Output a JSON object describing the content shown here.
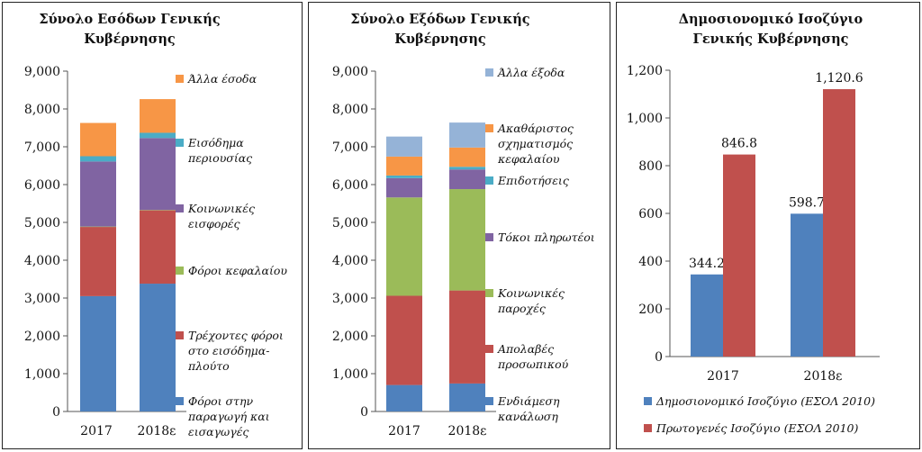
{
  "charts": [
    {
      "title": [
        "Σύνολο Εσόδων Γενικής",
        "Κυβέρνησης"
      ],
      "ytick_labels": [
        "0",
        "1,000",
        "2,000",
        "3,000",
        "4,000",
        "5,000",
        "6,000",
        "7,000",
        "8,000",
        "9,000"
      ],
      "legend_lines": [
        [
          "Άλλα έσοδα"
        ],
        [
          "Εισόδημα",
          "περιουσίας"
        ],
        [
          "Κοινωνικές",
          "εισφορές"
        ],
        [
          "Φόροι κεφαλαίου"
        ],
        [
          "Τρέχοντες φόροι",
          "στο εισόδημα-",
          "πλούτο"
        ],
        [
          "Φόροι στην",
          "παραγωγή και",
          "εισαγωγές"
        ]
      ]
    },
    {
      "title": [
        "Σύνολο Εξόδων Γενικής",
        "Κυβέρνησης"
      ],
      "ytick_labels": [
        "0",
        "1,000",
        "2,000",
        "3,000",
        "4,000",
        "5,000",
        "6,000",
        "7,000",
        "8,000",
        "9,000"
      ],
      "legend_lines": [
        [
          "Άλλα έξοδα"
        ],
        [
          "Ακαθάριστος",
          "σχηματισμός",
          "κεφαλαίου"
        ],
        [
          "Επιδοτήσεις"
        ],
        [
          "Τόκοι πληρωτέοι"
        ],
        [
          "Κοινωνικές",
          "παροχές"
        ],
        [
          "Απολαβές",
          "προσωπικού"
        ],
        [
          "Ενδιάμεση",
          "κανάλωση"
        ]
      ]
    },
    {
      "title": [
        "Δημοσιονομικό Ισοζύγιο",
        "Γενικής Κυβέρνησης"
      ],
      "ytick_labels": [
        "0",
        "200",
        "400",
        "600",
        "800",
        "1,000",
        "1,200"
      ],
      "value_labels": [
        [
          "344.2",
          "598.7"
        ],
        [
          "846.8",
          "1,120.6"
        ]
      ],
      "legend_lines": [
        [
          "Δημοσιονομικό Ισοζύγιο (ΕΣΟΛ 2010)"
        ],
        [
          "Πρωτογενές Ισοζύγιο (ΕΣΟΛ 2010)"
        ]
      ]
    }
  ],
  "chart_data": [
    {
      "type": "bar",
      "stacked": true,
      "title": "Σύνολο Εσόδων Γενικής Κυβέρνησης",
      "categories": [
        "2017",
        "2018ε"
      ],
      "ylim": [
        0,
        9000
      ],
      "grid": false,
      "legend": "right",
      "series": [
        {
          "name": "Φόροι στην παραγωγή και εισαγωγές",
          "color": "#4f81bd",
          "values": [
            3050,
            3380
          ]
        },
        {
          "name": "Τρέχοντες φόροι στο εισόδημα-πλούτο",
          "color": "#c0504d",
          "values": [
            1830,
            1940
          ]
        },
        {
          "name": "Φόροι κεφαλαίου",
          "color": "#9bbb59",
          "values": [
            10,
            10
          ]
        },
        {
          "name": "Κοινωνικές εισφορές",
          "color": "#8064a2",
          "values": [
            1720,
            1900
          ]
        },
        {
          "name": "Εισόδημα περιουσίας",
          "color": "#4bacc6",
          "values": [
            140,
            140
          ]
        },
        {
          "name": "Άλλα έσοδα",
          "color": "#f79646",
          "values": [
            880,
            890
          ]
        }
      ]
    },
    {
      "type": "bar",
      "stacked": true,
      "title": "Σύνολο Εξόδων Γενικής Κυβέρνησης",
      "categories": [
        "2017",
        "2018ε"
      ],
      "ylim": [
        0,
        9000
      ],
      "grid": false,
      "legend": "right",
      "series": [
        {
          "name": "Ενδιάμεση κανάλωση",
          "color": "#4f81bd",
          "values": [
            700,
            740
          ]
        },
        {
          "name": "Απολαβές προσωπικού",
          "color": "#c0504d",
          "values": [
            2360,
            2460
          ]
        },
        {
          "name": "Κοινωνικές παροχές",
          "color": "#9bbb59",
          "values": [
            2600,
            2680
          ]
        },
        {
          "name": "Τόκοι πληρωτέοι",
          "color": "#8064a2",
          "values": [
            510,
            520
          ]
        },
        {
          "name": "Επιδοτήσεις",
          "color": "#4bacc6",
          "values": [
            70,
            70
          ]
        },
        {
          "name": "Ακαθάριστος σχηματισμός κεφαλαίου",
          "color": "#f79646",
          "values": [
            500,
            510
          ]
        },
        {
          "name": "Άλλα έξοδα",
          "color": "#95b3d7",
          "values": [
            530,
            660
          ]
        }
      ]
    },
    {
      "type": "bar",
      "stacked": false,
      "title": "Δημοσιονομικό Ισοζύγιο Γενικής Κυβέρνησης",
      "categories": [
        "2017",
        "2018ε"
      ],
      "ylim": [
        0,
        1200
      ],
      "grid": false,
      "legend": "bottom",
      "series": [
        {
          "name": "Δημοσιονομικό Ισοζύγιο (ΕΣΟΛ 2010)",
          "color": "#4f81bd",
          "values": [
            344.2,
            598.7
          ]
        },
        {
          "name": "Πρωτογενές Ισοζύγιο (ΕΣΟΛ 2010)",
          "color": "#c0504d",
          "values": [
            846.8,
            1120.6
          ]
        }
      ]
    }
  ]
}
